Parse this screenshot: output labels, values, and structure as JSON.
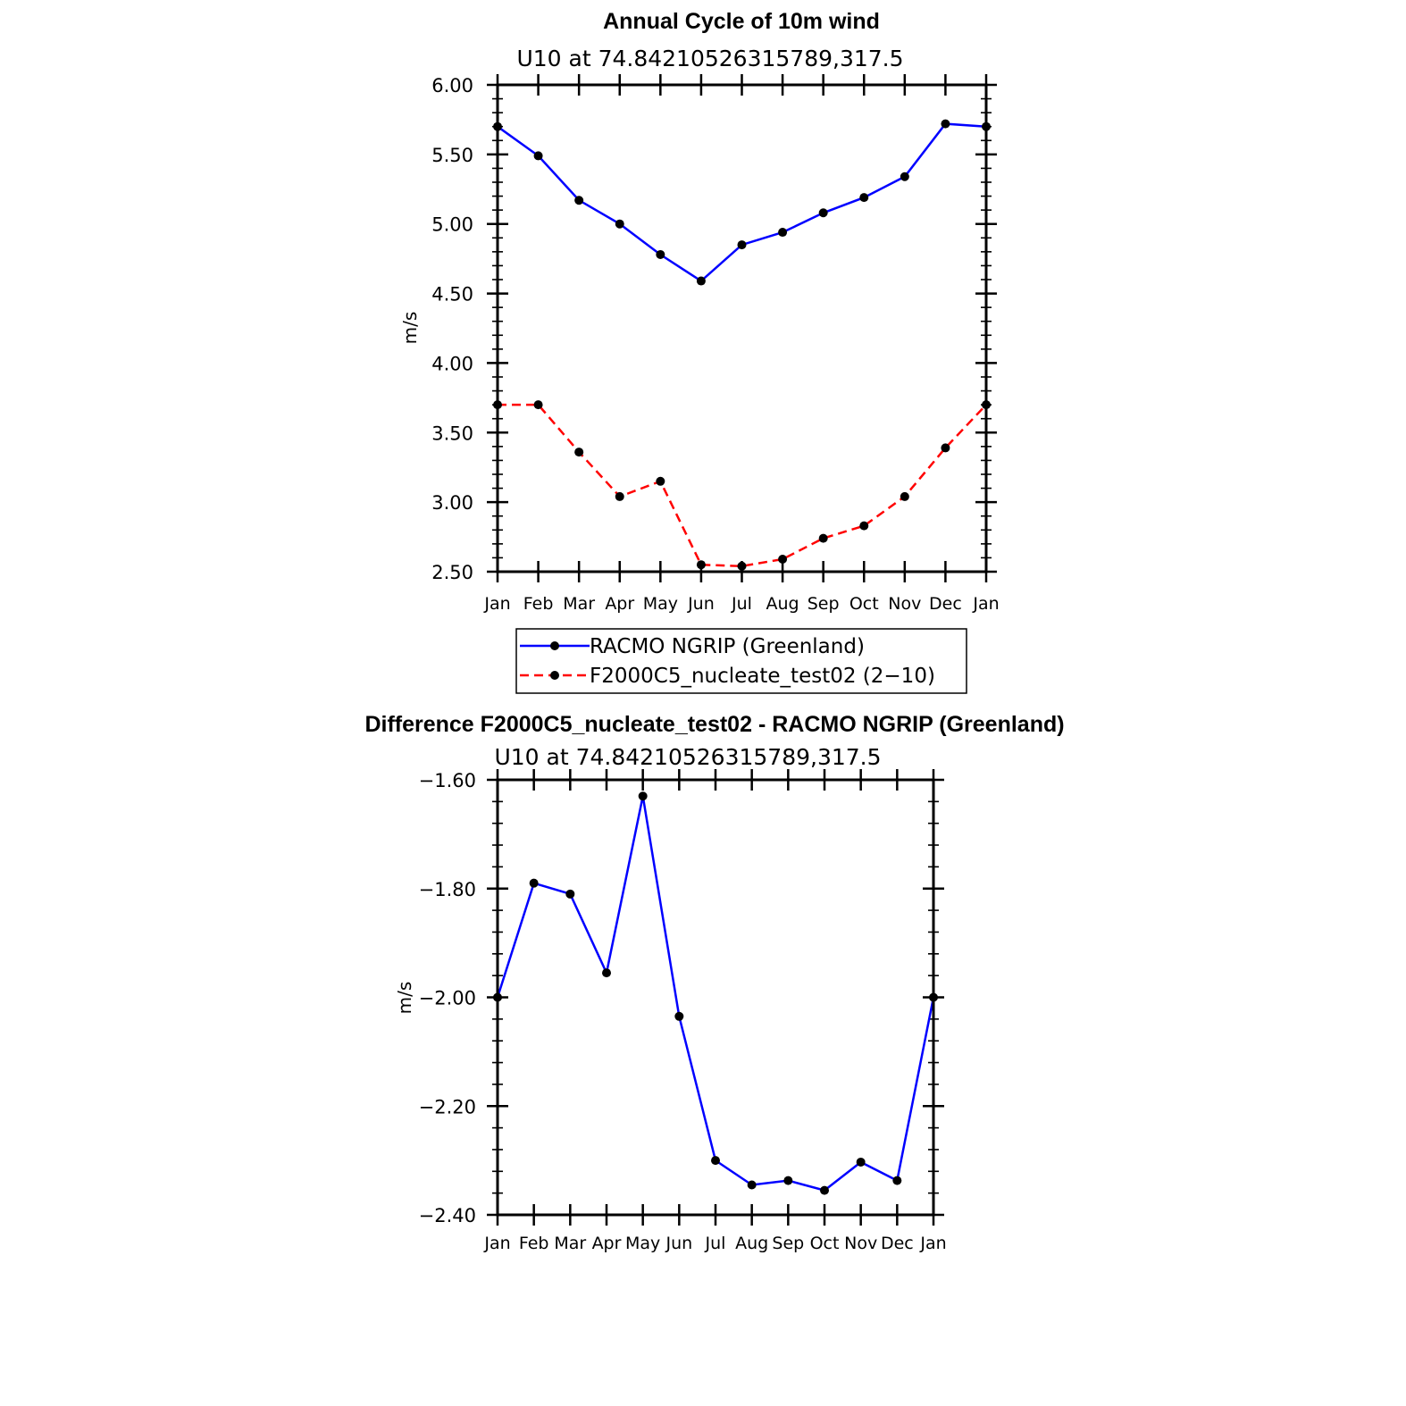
{
  "chart_data": [
    {
      "type": "line",
      "title": "Annual Cycle of 10m wind",
      "subtitle": "U10  at  74.84210526315789,317.5",
      "ylabel": "m/s",
      "xlabel": "",
      "categories": [
        "Jan",
        "Feb",
        "Mar",
        "Apr",
        "May",
        "Jun",
        "Jul",
        "Aug",
        "Sep",
        "Oct",
        "Nov",
        "Dec",
        "Jan"
      ],
      "ylim": [
        2.5,
        6.0
      ],
      "yticks": [
        "2.50",
        "3.00",
        "3.50",
        "4.00",
        "4.50",
        "5.00",
        "5.50",
        "6.00"
      ],
      "yminor_step": 0.1,
      "grid": false,
      "legend_position": "bottom",
      "series": [
        {
          "name": "RACMO NGRIP (Greenland)",
          "color": "#0000ff",
          "dash": "solid",
          "values": [
            5.7,
            5.49,
            5.17,
            5.0,
            4.78,
            4.59,
            4.85,
            4.94,
            5.08,
            5.19,
            5.34,
            5.72,
            5.7
          ]
        },
        {
          "name": "F2000C5_nucleate_test02 (2−10)",
          "color": "#ff0000",
          "dash": "dashed",
          "values": [
            3.7,
            3.7,
            3.36,
            3.04,
            3.15,
            2.55,
            2.54,
            2.59,
            2.74,
            2.83,
            3.04,
            3.39,
            3.7
          ]
        }
      ]
    },
    {
      "type": "line",
      "title": "Difference F2000C5_nucleate_test02 - RACMO NGRIP (Greenland)",
      "subtitle": "U10  at  74.84210526315789,317.5",
      "ylabel": "m/s",
      "xlabel": "",
      "categories": [
        "Jan",
        "Feb",
        "Mar",
        "Apr",
        "May",
        "Jun",
        "Jul",
        "Aug",
        "Sep",
        "Oct",
        "Nov",
        "Dec",
        "Jan"
      ],
      "ylim": [
        -2.4,
        -1.6
      ],
      "yticks": [
        "−2.40",
        "−2.20",
        "−2.00",
        "−1.80",
        "−1.60"
      ],
      "yminor_step": 0.04,
      "grid": false,
      "series": [
        {
          "color": "#0000ff",
          "dash": "solid",
          "values": [
            -2.0,
            -1.79,
            -1.81,
            -1.955,
            -1.63,
            -2.035,
            -2.3,
            -2.345,
            -2.337,
            -2.355,
            -2.303,
            -2.337,
            -2.0
          ]
        }
      ]
    }
  ]
}
